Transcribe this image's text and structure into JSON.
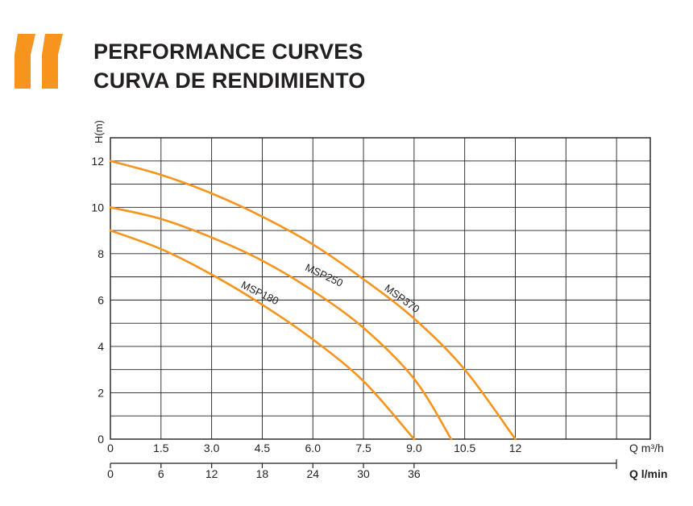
{
  "heading": {
    "line1": "PERFORMANCE CURVES",
    "line2": "CURVA DE RENDIMIENTO",
    "accent_color": "#f7941d"
  },
  "chart_data": {
    "type": "line",
    "ylabel": "H(m)",
    "xlabel": "Q m³/h",
    "x2label": "Q l/min",
    "xlim": [
      0,
      16
    ],
    "ylim": [
      0,
      13
    ],
    "x_ticks": [
      0,
      1.5,
      3.0,
      4.5,
      6.0,
      7.5,
      9.0,
      10.5,
      12
    ],
    "x_tick_labels": [
      "0",
      "1.5",
      "3.0",
      "4.5",
      "6.0",
      "7.5",
      "9.0",
      "10.5",
      "12"
    ],
    "y_ticks": [
      0,
      2,
      4,
      6,
      8,
      10,
      12
    ],
    "y_tick_labels": [
      "0",
      "2",
      "4",
      "6",
      "8",
      "10",
      "12"
    ],
    "x2_ticks": [
      0,
      6,
      12,
      18,
      24,
      30,
      36
    ],
    "x2_tick_labels": [
      "0",
      "6",
      "12",
      "18",
      "24",
      "30",
      "36"
    ],
    "grid": true,
    "line_color": "#f7941d",
    "series": [
      {
        "name": "MSP180",
        "x": [
          0,
          1.5,
          3.0,
          4.5,
          6.0,
          7.5,
          9.0
        ],
        "y": [
          9.0,
          8.2,
          7.1,
          5.8,
          4.3,
          2.5,
          0
        ]
      },
      {
        "name": "MSP250",
        "x": [
          0,
          1.5,
          3.0,
          4.5,
          6.0,
          7.5,
          9.0,
          10.1
        ],
        "y": [
          10.0,
          9.5,
          8.7,
          7.7,
          6.4,
          4.8,
          2.6,
          0
        ]
      },
      {
        "name": "MSP370",
        "x": [
          0,
          1.5,
          3.0,
          4.5,
          6.0,
          7.5,
          9.0,
          10.5,
          12.0
        ],
        "y": [
          12.0,
          11.4,
          10.6,
          9.6,
          8.4,
          6.9,
          5.2,
          3.0,
          0
        ]
      }
    ]
  }
}
